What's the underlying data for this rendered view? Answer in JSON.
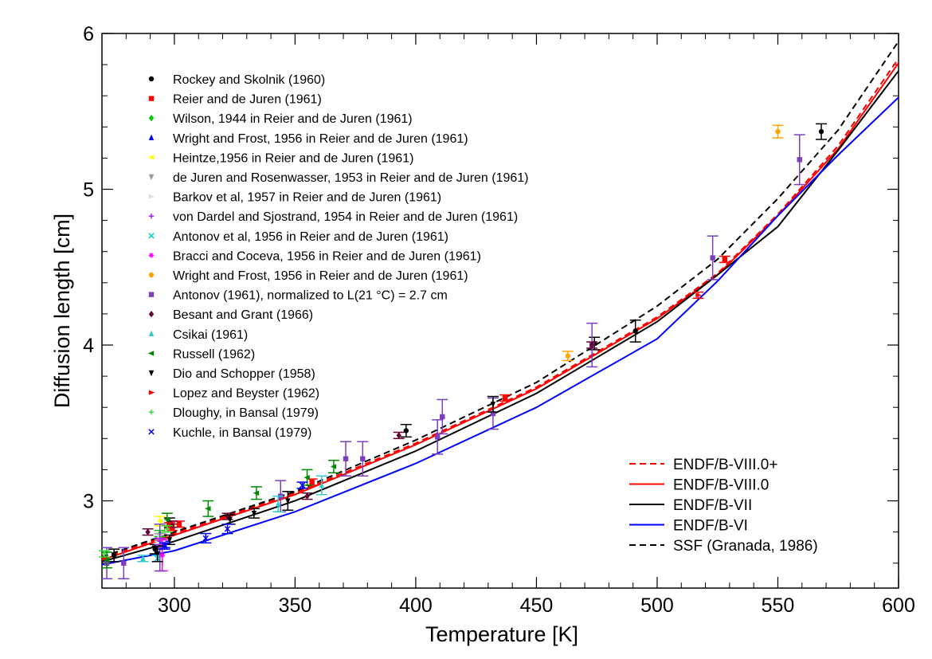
{
  "chart_data": {
    "type": "line",
    "title": "",
    "xlabel": "Temperature [K]",
    "ylabel": "Diffusion length [cm]",
    "xlim": [
      270,
      600
    ],
    "ylim": [
      2.44,
      6
    ],
    "xticks": [
      300,
      350,
      400,
      450,
      500,
      550,
      600
    ],
    "yticks": [
      3,
      4,
      5,
      6
    ],
    "x_minor_step": 10,
    "y_minor_step": 0.2,
    "grid": false,
    "series": [
      {
        "name": "ENDF/B-VIII.0+",
        "color": "#ff0000",
        "dash": "8,5",
        "x": [
          270,
          300,
          350,
          400,
          450,
          500,
          525,
          550,
          575,
          600
        ],
        "y": [
          2.63,
          2.79,
          3.05,
          3.37,
          3.73,
          4.18,
          4.46,
          4.84,
          5.28,
          5.84
        ]
      },
      {
        "name": "ENDF/B-VIII.0",
        "color": "#ff0000",
        "dash": "",
        "x": [
          270,
          300,
          350,
          400,
          450,
          500,
          525,
          550,
          575,
          600
        ],
        "y": [
          2.62,
          2.78,
          3.04,
          3.36,
          3.72,
          4.17,
          4.45,
          4.83,
          5.26,
          5.81
        ]
      },
      {
        "name": "ENDF/B-VII",
        "color": "#000000",
        "dash": "",
        "x": [
          270,
          300,
          350,
          400,
          450,
          500,
          525,
          550,
          575,
          600
        ],
        "y": [
          2.61,
          2.74,
          3.0,
          3.32,
          3.69,
          4.15,
          4.45,
          4.76,
          5.25,
          5.76
        ]
      },
      {
        "name": "ENDF/B-VI",
        "color": "#0000ff",
        "dash": "",
        "x": [
          270,
          300,
          350,
          400,
          450,
          500,
          525,
          550,
          575,
          600
        ],
        "y": [
          2.59,
          2.68,
          2.93,
          3.24,
          3.6,
          4.04,
          4.41,
          4.83,
          5.22,
          5.59
        ]
      },
      {
        "name": "SSF (Granada, 1986)",
        "color": "#000000",
        "dash": "8,5",
        "x": [
          270,
          300,
          350,
          400,
          450,
          500,
          525,
          550,
          575,
          600
        ],
        "y": [
          2.64,
          2.8,
          3.06,
          3.39,
          3.76,
          4.25,
          4.55,
          4.94,
          5.38,
          5.95
        ]
      }
    ],
    "experiments": [
      {
        "name": "Rockey and Skolnik (1960)",
        "color": "#000000",
        "marker": "circle",
        "points": [
          [
            275,
            2.65,
            0.04
          ],
          [
            292,
            2.69,
            0.03
          ],
          [
            298,
            2.86,
            0.03
          ],
          [
            396,
            3.45,
            0.04
          ],
          [
            474,
            4.01,
            0.04
          ],
          [
            491,
            4.09,
            0.07
          ],
          [
            568,
            5.37,
            0.05
          ]
        ]
      },
      {
        "name": "Reier and de Juren (1961)",
        "color": "#ff0000",
        "marker": "square",
        "points": [
          [
            299,
            2.83,
            0.02
          ],
          [
            302,
            2.85,
            0.02
          ],
          [
            357,
            3.12,
            0.02
          ],
          [
            437,
            3.66,
            0.02
          ],
          [
            528,
            4.55,
            0.02
          ]
        ]
      },
      {
        "name": "Wilson, 1944 in Reier and de Juren (1961)",
        "color": "#00cc00",
        "marker": "diamond",
        "points": [
          [
            294,
            2.79,
            0.02
          ]
        ]
      },
      {
        "name": "Wright and Frost, 1956 in Reier and de Juren (1961)",
        "color": "#0000ff",
        "marker": "triangle-up",
        "points": [
          [
            296,
            2.72,
            0.02
          ]
        ]
      },
      {
        "name": "Heintze,1956 in Reier and de Juren (1961)",
        "color": "#ffff00",
        "marker": "triangle-left",
        "points": [
          [
            294,
            2.87,
            0.03
          ]
        ]
      },
      {
        "name": "de Juren and Rosenwasser, 1953 in Reier and de Juren (1961)",
        "color": "#999999",
        "marker": "triangle-down",
        "points": [
          [
            294,
            2.77,
            0.02
          ]
        ]
      },
      {
        "name": "Barkov et al, 1957 in Reier and de Juren (1961)",
        "color": "#dddddd",
        "marker": "triangle-right",
        "points": [
          [
            294,
            2.76,
            0.02
          ]
        ]
      },
      {
        "name": "von Dardel and Sjostrand, 1954 in Reier and de Juren (1961)",
        "color": "#a020f0",
        "marker": "plus",
        "points": [
          [
            294,
            2.74,
            0.02
          ]
        ]
      },
      {
        "name": "Antonov et al, 1956 in Reier and de Juren (1961)",
        "color": "#00cccc",
        "marker": "x",
        "points": [
          [
            293,
            2.63,
            0.02
          ]
        ]
      },
      {
        "name": "Bracci and Coceva, 1956 in Reier and de Juren (1961)",
        "color": "#ff00ff",
        "marker": "star",
        "points": [
          [
            295,
            2.65,
            0.1
          ]
        ]
      },
      {
        "name": "Wright and Frost, 1956 in Reier and de Juren (1961)",
        "color": "#ffa500",
        "marker": "circle",
        "points": [
          [
            463,
            3.93,
            0.03
          ],
          [
            550,
            5.37,
            0.04
          ]
        ]
      },
      {
        "name": "Antonov (1961), normalized to L(21 °C) = 2.7 cm",
        "color": "#7b3fbf",
        "marker": "square",
        "points": [
          [
            272,
            2.6,
            0.1
          ],
          [
            279,
            2.6,
            0.1
          ],
          [
            294,
            2.7,
            0.15
          ],
          [
            344,
            3.03,
            0.1
          ],
          [
            371,
            3.27,
            0.11
          ],
          [
            378,
            3.27,
            0.11
          ],
          [
            409,
            3.41,
            0.11
          ],
          [
            411,
            3.54,
            0.11
          ],
          [
            432,
            3.56,
            0.1
          ],
          [
            473,
            4.0,
            0.14
          ],
          [
            523,
            4.56,
            0.14
          ],
          [
            559,
            5.19,
            0.16
          ]
        ]
      },
      {
        "name": "Besant and Grant (1966)",
        "color": "#660033",
        "marker": "diamond",
        "points": [
          [
            289,
            2.8,
            0.02
          ],
          [
            299,
            2.85,
            0.02
          ],
          [
            322,
            2.9,
            0.02
          ],
          [
            355,
            3.03,
            0.02
          ],
          [
            393,
            3.42,
            0.02
          ],
          [
            473,
            4.0,
            0.02
          ]
        ]
      },
      {
        "name": "Csikai (1961)",
        "color": "#33cccc",
        "marker": "triangle-up",
        "points": [
          [
            287,
            2.63,
            0.02
          ],
          [
            343,
            2.98,
            0.05
          ],
          [
            361,
            3.1,
            0.06
          ]
        ]
      },
      {
        "name": "Russell (1962)",
        "color": "#008800",
        "marker": "triangle-left",
        "points": [
          [
            272,
            2.62,
            0.05
          ],
          [
            297,
            2.88,
            0.04
          ],
          [
            314,
            2.95,
            0.05
          ],
          [
            334,
            3.05,
            0.04
          ],
          [
            355,
            3.15,
            0.05
          ],
          [
            366,
            3.22,
            0.04
          ]
        ]
      },
      {
        "name": "Dio and Schopper (1958)",
        "color": "#000000",
        "marker": "triangle-down",
        "points": [
          [
            293,
            2.66,
            0.05
          ],
          [
            298,
            2.75,
            0.03
          ],
          [
            323,
            2.88,
            0.03
          ],
          [
            333,
            2.92,
            0.03
          ],
          [
            347,
            3.0,
            0.06
          ],
          [
            432,
            3.62,
            0.05
          ]
        ]
      },
      {
        "name": "Lopez and Beyster (1962)",
        "color": "#ff0000",
        "marker": "triangle-right",
        "points": [
          [
            298,
            2.84,
            0.02
          ],
          [
            517,
            4.32,
            0.02
          ]
        ]
      },
      {
        "name": "Dloughy, in Bansal (1979)",
        "color": "#33dd33",
        "marker": "plus",
        "points": [
          [
            271,
            2.66,
            0.02
          ],
          [
            297,
            2.82,
            0.02
          ]
        ]
      },
      {
        "name": "Kuchle, in Bansal (1979)",
        "color": "#0000ff",
        "marker": "x",
        "points": [
          [
            296,
            2.71,
            0.02
          ],
          [
            313,
            2.76,
            0.03
          ],
          [
            322,
            2.82,
            0.03
          ],
          [
            353,
            3.1,
            0.02
          ]
        ]
      }
    ]
  }
}
